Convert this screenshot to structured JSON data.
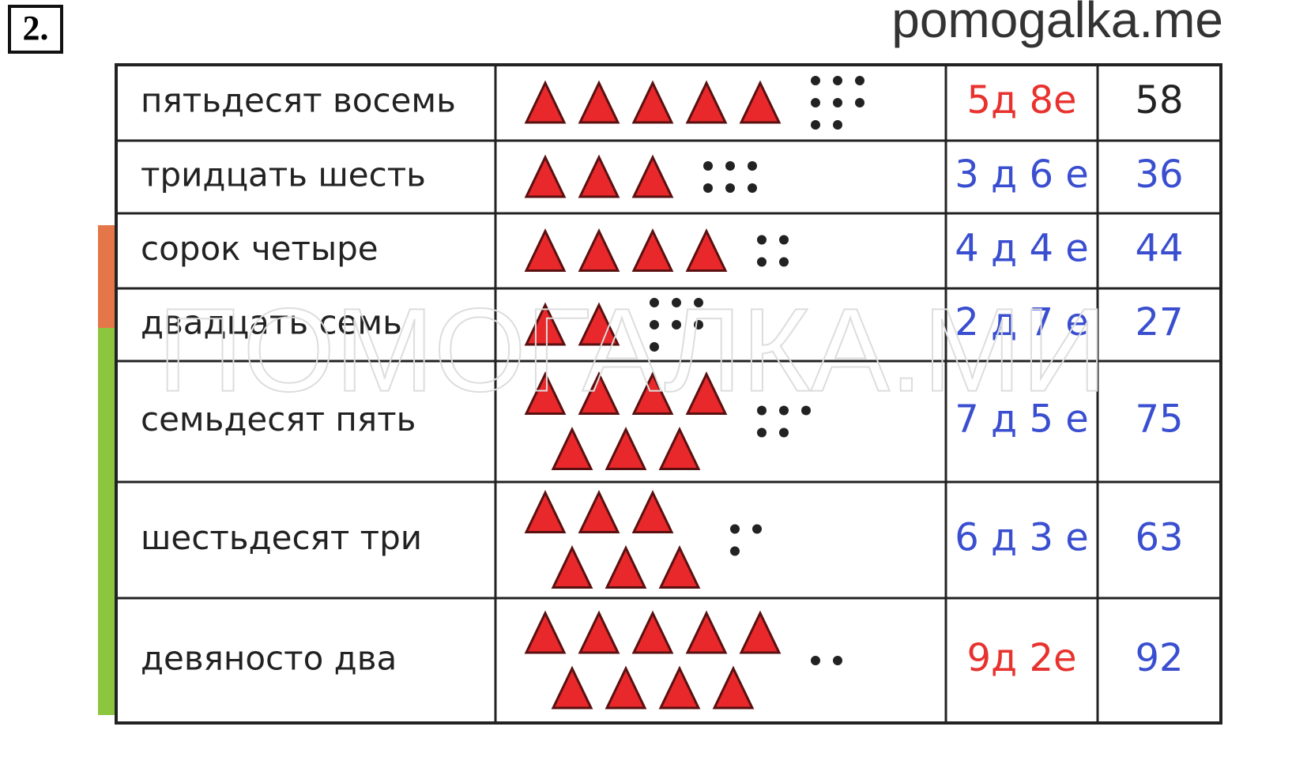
{
  "task_number": "2.",
  "site": "pomogalka.me",
  "watermark": "ПОМОГАЛКА.МИ",
  "table": {
    "rows": [
      {
        "words": "пятьдесят восемь",
        "digits": "5д 8е",
        "number": 58,
        "digits_color": "#e8322e",
        "number_color": "#222222"
      },
      {
        "words": "тридцать шесть",
        "digits": "3 д 6 е",
        "number": 36,
        "digits_color": "#3a4fd0",
        "number_color": "#3a4fd0"
      },
      {
        "words": "сорок четыре",
        "digits": "4 д 4 е",
        "number": 44,
        "digits_color": "#3a4fd0",
        "number_color": "#3a4fd0"
      },
      {
        "words": "двадцать семь",
        "digits": "2 д 7 е",
        "number": 27,
        "digits_color": "#3a4fd0",
        "number_color": "#3a4fd0"
      },
      {
        "words": "семьдесят пять",
        "digits": "7 д 5 е",
        "number": 75,
        "digits_color": "#3a4fd0",
        "number_color": "#3a4fd0"
      },
      {
        "words": "шестьдесят три",
        "digits": "6 д 3 е",
        "number": 63,
        "digits_color": "#3a4fd0",
        "number_color": "#3a4fd0"
      },
      {
        "words": "девяносто два",
        "digits": "9д 2е",
        "number": 92,
        "digits_color": "#e8322e",
        "number_color": "#3a4fd0"
      }
    ]
  }
}
